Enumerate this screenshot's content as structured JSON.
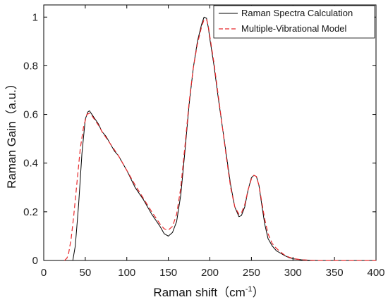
{
  "chart_data": {
    "type": "line",
    "title": "",
    "xlabel": "Raman shift（cm",
    "xlabel_sup": "-1",
    "xlabel_close": "）",
    "ylabel": "Raman Gain（a.u.）",
    "xlim": [
      0,
      400
    ],
    "ylim": [
      0,
      1.05
    ],
    "xticks": [
      0,
      50,
      100,
      150,
      200,
      250,
      300,
      350,
      400
    ],
    "yticks": [
      0,
      0.2,
      0.4,
      0.6,
      0.8,
      1
    ],
    "ytick_labels": [
      "0",
      "0.2",
      "0.4",
      "0.6",
      "0.8",
      "1"
    ],
    "grid": false,
    "legend_position": "top-right",
    "series": [
      {
        "name": "Raman Spectra Calculation",
        "color": "#000000",
        "style": "solid",
        "x": [
          30,
          35,
          38,
          42,
          46,
          50,
          53,
          55,
          58,
          62,
          66,
          70,
          75,
          80,
          85,
          90,
          95,
          100,
          110,
          120,
          130,
          140,
          145,
          150,
          155,
          160,
          165,
          170,
          175,
          180,
          185,
          190,
          193,
          196,
          198,
          200,
          205,
          210,
          215,
          220,
          225,
          230,
          235,
          238,
          242,
          246,
          250,
          253,
          256,
          259,
          262,
          266,
          270,
          275,
          280,
          285,
          290,
          295,
          300,
          310,
          320,
          330,
          340,
          350,
          360,
          380,
          400
        ],
        "y": [
          0.0,
          0.0,
          0.06,
          0.23,
          0.44,
          0.58,
          0.61,
          0.615,
          0.6,
          0.58,
          0.56,
          0.53,
          0.51,
          0.48,
          0.45,
          0.43,
          0.4,
          0.37,
          0.3,
          0.25,
          0.19,
          0.14,
          0.11,
          0.1,
          0.115,
          0.16,
          0.27,
          0.45,
          0.64,
          0.79,
          0.9,
          0.97,
          1.0,
          0.995,
          0.96,
          0.91,
          0.8,
          0.67,
          0.55,
          0.43,
          0.31,
          0.22,
          0.18,
          0.185,
          0.22,
          0.29,
          0.34,
          0.35,
          0.345,
          0.31,
          0.24,
          0.15,
          0.09,
          0.06,
          0.04,
          0.03,
          0.02,
          0.012,
          0.007,
          0.003,
          0.001,
          0.0,
          0.0,
          0.0,
          0.0,
          0.0,
          0.0
        ]
      },
      {
        "name": "Multiple-Vibrational Model",
        "color": "#e8292c",
        "style": "dashed",
        "x": [
          25,
          28,
          30,
          33,
          36,
          40,
          44,
          48,
          52,
          55,
          58,
          62,
          66,
          70,
          75,
          80,
          85,
          90,
          95,
          100,
          110,
          120,
          130,
          140,
          145,
          150,
          155,
          160,
          165,
          170,
          175,
          180,
          185,
          190,
          193,
          196,
          198,
          200,
          205,
          210,
          215,
          220,
          225,
          230,
          235,
          238,
          242,
          246,
          250,
          253,
          256,
          259,
          262,
          266,
          270,
          275,
          280,
          285,
          290,
          295,
          300,
          310,
          320,
          330,
          340,
          360,
          380,
          400
        ],
        "y": [
          0.0,
          0.01,
          0.03,
          0.09,
          0.18,
          0.32,
          0.46,
          0.55,
          0.6,
          0.605,
          0.595,
          0.575,
          0.555,
          0.53,
          0.505,
          0.48,
          0.455,
          0.43,
          0.4,
          0.37,
          0.31,
          0.255,
          0.2,
          0.15,
          0.13,
          0.125,
          0.14,
          0.19,
          0.3,
          0.47,
          0.65,
          0.79,
          0.89,
          0.96,
          0.99,
          0.99,
          0.965,
          0.92,
          0.81,
          0.68,
          0.55,
          0.42,
          0.3,
          0.22,
          0.19,
          0.195,
          0.23,
          0.29,
          0.335,
          0.35,
          0.345,
          0.31,
          0.25,
          0.17,
          0.11,
          0.07,
          0.05,
          0.035,
          0.022,
          0.014,
          0.008,
          0.003,
          0.001,
          0.0,
          0.0,
          0.0,
          0.0,
          0.0
        ]
      }
    ]
  }
}
